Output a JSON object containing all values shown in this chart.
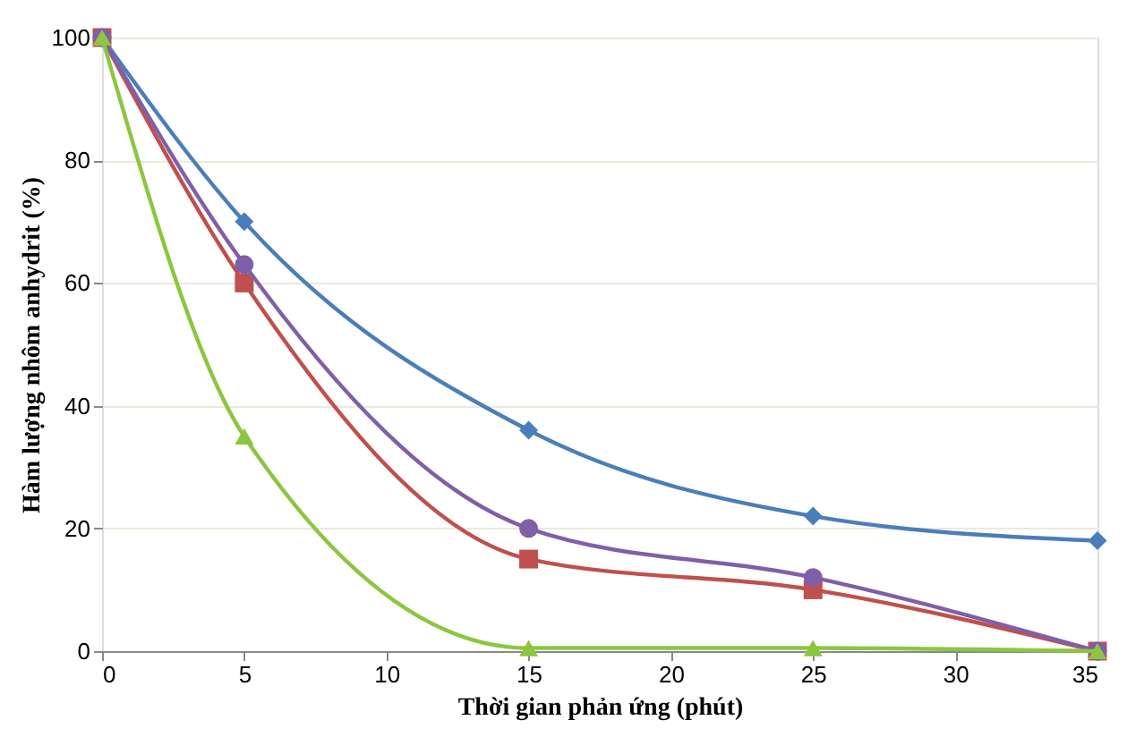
{
  "chart_data": {
    "type": "line",
    "xlabel": "Thời gian phản ứng (phút)",
    "ylabel": "Hàm lượng nhôm anhydrit (%)",
    "x": [
      0,
      5,
      15,
      25,
      35
    ],
    "series": [
      {
        "color": "#4a7ebb",
        "marker": "diamond",
        "values": [
          100,
          70,
          36,
          22,
          18
        ]
      },
      {
        "color": "#c0504d",
        "marker": "square",
        "values": [
          100,
          60,
          15,
          10,
          0
        ]
      },
      {
        "color": "#7f5fa8",
        "marker": "circle",
        "values": [
          100,
          63,
          20,
          12,
          0
        ]
      },
      {
        "color": "#8cc63f",
        "marker": "triangle",
        "values": [
          100,
          35,
          0.5,
          0.5,
          0
        ]
      }
    ],
    "xlim": [
      0,
      35
    ],
    "xticks": [
      0,
      5,
      10,
      15,
      20,
      25,
      30,
      35
    ],
    "ylim": [
      0,
      100
    ],
    "yticks": [
      0,
      20,
      40,
      60,
      80,
      100
    ],
    "grid": "y",
    "line_style": "solid"
  }
}
